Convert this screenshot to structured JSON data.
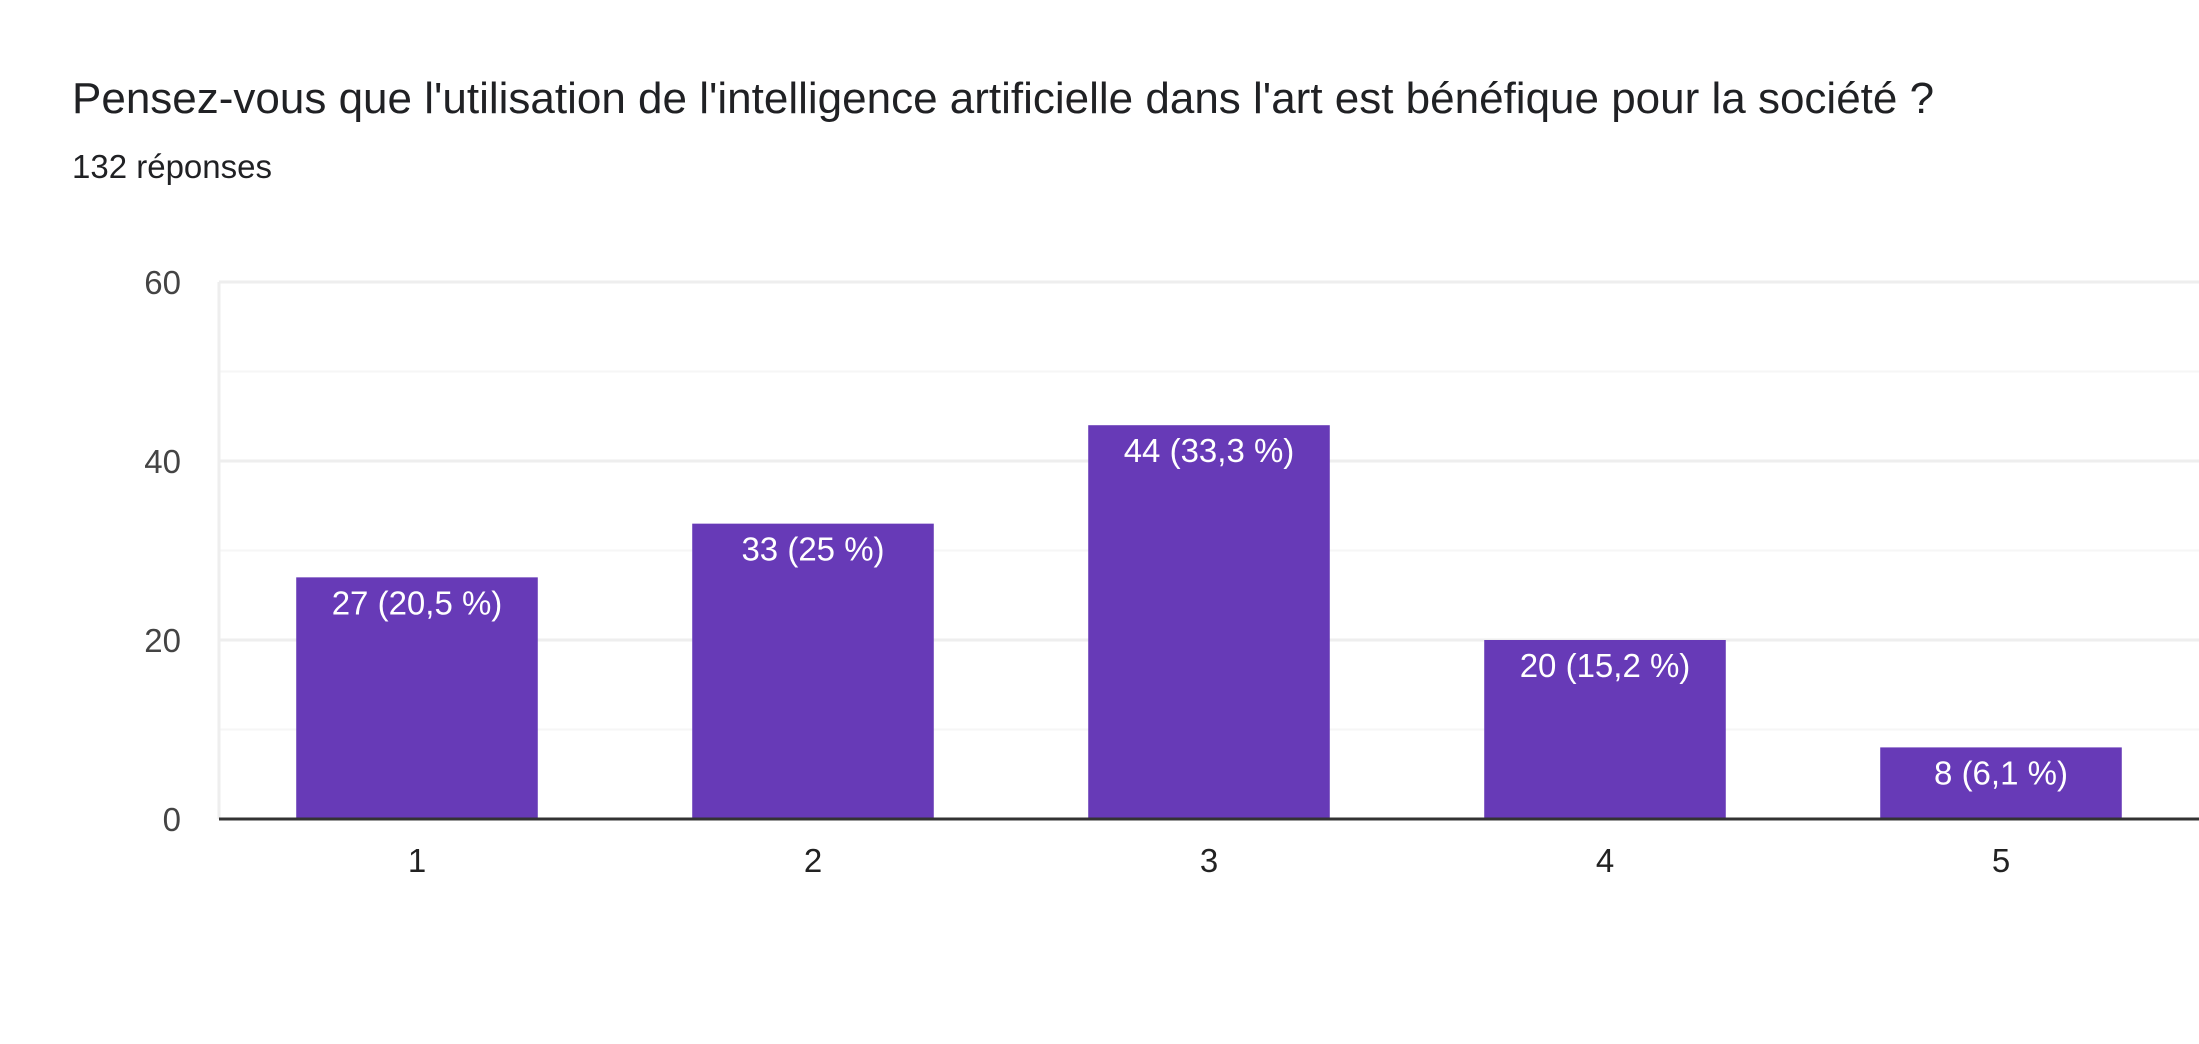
{
  "header": {
    "title": "Pensez-vous que l'utilisation de l'intelligence artificielle dans l'art est bénéfique pour la société ?",
    "subtitle": "132 réponses"
  },
  "colors": {
    "bar": "#673ab7",
    "grid": "#eeeeee",
    "axis": "#333333"
  },
  "chart_data": {
    "type": "bar",
    "categories": [
      "1",
      "2",
      "3",
      "4",
      "5"
    ],
    "values": [
      27,
      33,
      44,
      20,
      8
    ],
    "data_labels": [
      "27 (20,5 %)",
      "33 (25 %)",
      "44 (33,3 %)",
      "20 (15,2 %)",
      "8 (6,1 %)"
    ],
    "yticks": [
      0,
      20,
      40,
      60
    ],
    "ylim": [
      0,
      60
    ],
    "minor_grid_step": 10,
    "grid": true,
    "legend": "none"
  }
}
